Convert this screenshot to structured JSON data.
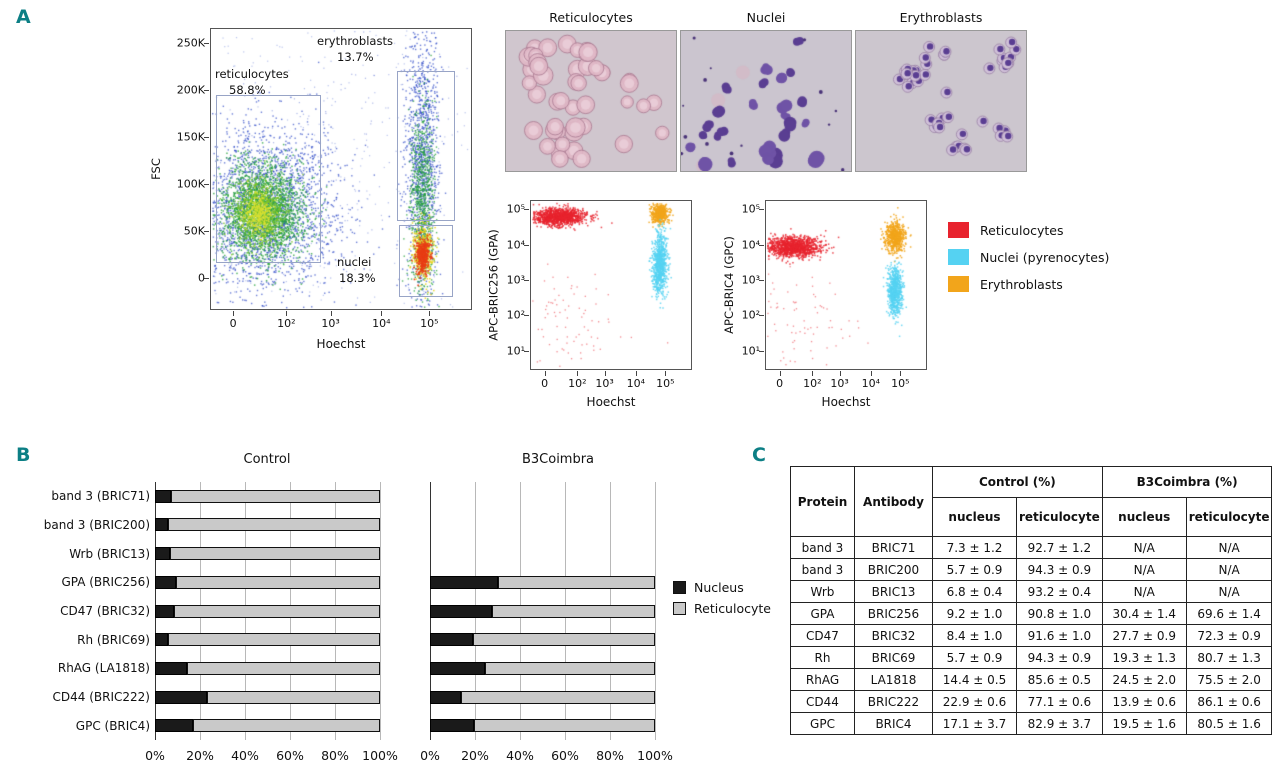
{
  "figure": {
    "panel_labels": {
      "a": "A",
      "b": "B",
      "c": "C"
    },
    "accent_color": "#0c7f85"
  },
  "panel_a": {
    "fsc_plot": {
      "xlabel": "Hoechst",
      "ylabel": "FSC",
      "xticks": [
        "0",
        "10²",
        "10³",
        "10⁴",
        "10⁵"
      ],
      "yticks": [
        "250K",
        "200K",
        "150K",
        "100K",
        "50K",
        "0"
      ],
      "gates": {
        "reticulocytes": {
          "label": "reticulocytes",
          "percent": "58.8%"
        },
        "erythroblasts": {
          "label": "erythroblasts",
          "percent": "13.7%"
        },
        "nuclei": {
          "label": "nuclei",
          "percent": "18.3%"
        }
      }
    },
    "micrographs": [
      {
        "title": "Reticulocytes"
      },
      {
        "title": "Nuclei"
      },
      {
        "title": "Erythroblasts"
      }
    ],
    "gpa_plot": {
      "xlabel": "Hoechst",
      "ylabel": "APC-BRIC256 (GPA)",
      "xticks": [
        "0",
        "10²",
        "10³",
        "10⁴",
        "10⁵"
      ],
      "yticks": [
        "10⁵",
        "10⁴",
        "10³",
        "10²",
        "10¹"
      ]
    },
    "gpc_plot": {
      "xlabel": "Hoechst",
      "ylabel": "APC-BRIC4 (GPC)",
      "xticks": [
        "0",
        "10²",
        "10³",
        "10⁴",
        "10⁵"
      ],
      "yticks": [
        "10⁵",
        "10⁴",
        "10³",
        "10²",
        "10¹"
      ]
    },
    "legend": [
      {
        "label": "Reticulocytes",
        "color": "#e8232e"
      },
      {
        "label": "Nuclei (pyrenocytes)",
        "color": "#55d2f2"
      },
      {
        "label": "Erythroblasts",
        "color": "#f2a51b"
      }
    ]
  },
  "chart_data": [
    {
      "type": "scatter",
      "name": "fsc-vs-hoechst",
      "xlabel": "Hoechst",
      "ylabel": "FSC",
      "xticks": [
        "0",
        "10²",
        "10³",
        "10⁴",
        "10⁵"
      ],
      "yticks": [
        "250K",
        "200K",
        "150K",
        "100K",
        "50K",
        "0"
      ],
      "populations": [
        {
          "name": "reticulocytes",
          "percent": 58.8,
          "hoechst": "negative (0–10²)",
          "fsc": "30K–130K"
        },
        {
          "name": "erythroblasts",
          "percent": 13.7,
          "hoechst": "~10⁴·⁶",
          "fsc": "50K–220K"
        },
        {
          "name": "nuclei",
          "percent": 18.3,
          "hoechst": "~10⁴·⁶",
          "fsc": "10K–45K"
        }
      ]
    },
    {
      "type": "scatter",
      "name": "gpa-vs-hoechst",
      "xlabel": "Hoechst",
      "ylabel": "APC-BRIC256 (GPA)",
      "populations": [
        {
          "name": "Reticulocytes",
          "color": "#e8232e",
          "hoechst": "negative",
          "apc": "~10⁵"
        },
        {
          "name": "Nuclei (pyrenocytes)",
          "color": "#55d2f2",
          "hoechst": "~10⁴·⁶",
          "apc": "10³–10⁴"
        },
        {
          "name": "Erythroblasts",
          "color": "#f2a51b",
          "hoechst": "~10⁴·⁶",
          "apc": "~10⁵"
        }
      ]
    },
    {
      "type": "scatter",
      "name": "gpc-vs-hoechst",
      "xlabel": "Hoechst",
      "ylabel": "APC-BRIC4 (GPC)",
      "populations": [
        {
          "name": "Reticulocytes",
          "color": "#e8232e",
          "hoechst": "negative",
          "apc": "~10⁴"
        },
        {
          "name": "Nuclei (pyrenocytes)",
          "color": "#55d2f2",
          "hoechst": "~10⁴·⁶",
          "apc": "~10³"
        },
        {
          "name": "Erythroblasts",
          "color": "#f2a51b",
          "hoechst": "~10⁴·⁶",
          "apc": "~2×10⁴"
        }
      ]
    },
    {
      "type": "bar",
      "name": "panel-b-antigen-partitioning",
      "orientation": "horizontal-stacked",
      "categories": [
        "band 3 (BRIC71)",
        "band 3 (BRIC200)",
        "Wrb (BRIC13)",
        "GPA (BRIC256)",
        "CD47 (BRIC32)",
        "Rh (BRIC69)",
        "RhAG (LA1818)",
        "CD44 (BRIC222)",
        "GPC (BRIC4)"
      ],
      "xticks": [
        "0%",
        "20%",
        "40%",
        "60%",
        "80%",
        "100%"
      ],
      "xlim": [
        0,
        100
      ],
      "charts": [
        {
          "title": "Control",
          "series": [
            {
              "name": "Nucleus",
              "color": "#1a1a1a",
              "values": [
                7.3,
                5.7,
                6.8,
                9.2,
                8.4,
                5.7,
                14.4,
                22.9,
                17.1
              ]
            },
            {
              "name": "Reticulocyte",
              "color": "#c9c9c9",
              "values": [
                92.7,
                94.3,
                93.2,
                90.8,
                91.6,
                94.3,
                85.6,
                77.1,
                82.9
              ]
            }
          ]
        },
        {
          "title": "B3Coimbra",
          "series": [
            {
              "name": "Nucleus",
              "color": "#1a1a1a",
              "values": [
                null,
                null,
                null,
                30.4,
                27.7,
                19.3,
                24.5,
                13.9,
                19.5
              ]
            },
            {
              "name": "Reticulocyte",
              "color": "#c9c9c9",
              "values": [
                null,
                null,
                null,
                69.6,
                72.3,
                80.7,
                75.5,
                86.1,
                80.5
              ]
            }
          ]
        }
      ],
      "legend": [
        {
          "label": "Nucleus",
          "color": "#1a1a1a"
        },
        {
          "label": "Reticulocyte",
          "color": "#c9c9c9"
        }
      ]
    }
  ],
  "panel_c": {
    "table": {
      "headers": {
        "protein": "Protein",
        "antibody": "Antibody",
        "control": "Control (%)",
        "b3coimbra": "B3Coimbra (%)",
        "nucleus": "nucleus",
        "reticulocyte": "reticulocyte"
      },
      "rows": [
        {
          "protein": "band 3",
          "antibody": "BRIC71",
          "control_nucleus": "7.3 ± 1.2",
          "control_reticulocyte": "92.7 ± 1.2",
          "b3_nucleus": "N/A",
          "b3_reticulocyte": "N/A"
        },
        {
          "protein": "band 3",
          "antibody": "BRIC200",
          "control_nucleus": "5.7 ± 0.9",
          "control_reticulocyte": "94.3 ± 0.9",
          "b3_nucleus": "N/A",
          "b3_reticulocyte": "N/A"
        },
        {
          "protein": "Wrb",
          "antibody": "BRIC13",
          "control_nucleus": "6.8 ± 0.4",
          "control_reticulocyte": "93.2 ± 0.4",
          "b3_nucleus": "N/A",
          "b3_reticulocyte": "N/A"
        },
        {
          "protein": "GPA",
          "antibody": "BRIC256",
          "control_nucleus": "9.2 ± 1.0",
          "control_reticulocyte": "90.8 ± 1.0",
          "b3_nucleus": "30.4 ± 1.4",
          "b3_reticulocyte": "69.6 ± 1.4"
        },
        {
          "protein": "CD47",
          "antibody": "BRIC32",
          "control_nucleus": "8.4 ± 1.0",
          "control_reticulocyte": "91.6 ± 1.0",
          "b3_nucleus": "27.7 ± 0.9",
          "b3_reticulocyte": "72.3 ± 0.9"
        },
        {
          "protein": "Rh",
          "antibody": "BRIC69",
          "control_nucleus": "5.7 ± 0.9",
          "control_reticulocyte": "94.3 ± 0.9",
          "b3_nucleus": "19.3 ± 1.3",
          "b3_reticulocyte": "80.7 ± 1.3"
        },
        {
          "protein": "RhAG",
          "antibody": "LA1818",
          "control_nucleus": "14.4 ± 0.5",
          "control_reticulocyte": "85.6 ± 0.5",
          "b3_nucleus": "24.5 ± 2.0",
          "b3_reticulocyte": "75.5 ± 2.0"
        },
        {
          "protein": "CD44",
          "antibody": "BRIC222",
          "control_nucleus": "22.9 ± 0.6",
          "control_reticulocyte": "77.1 ± 0.6",
          "b3_nucleus": "13.9 ± 0.6",
          "b3_reticulocyte": "86.1 ± 0.6"
        },
        {
          "protein": "GPC",
          "antibody": "BRIC4",
          "control_nucleus": "17.1 ± 3.7",
          "control_reticulocyte": "82.9 ± 3.7",
          "b3_nucleus": "19.5 ± 1.6",
          "b3_reticulocyte": "80.5 ± 1.6"
        }
      ]
    }
  }
}
